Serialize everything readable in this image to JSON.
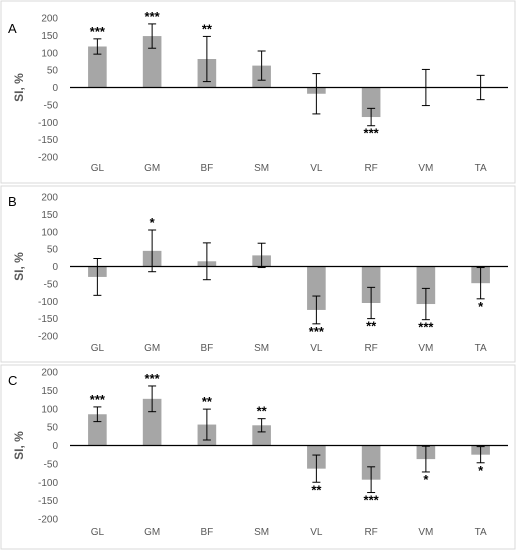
{
  "chart_data": [
    {
      "panel": "A",
      "type": "bar",
      "ylabel": "SI, %",
      "ylim": [
        -200,
        200
      ],
      "yticks": [
        200,
        150,
        100,
        50,
        0,
        -50,
        -100,
        -150,
        -200
      ],
      "categories": [
        "GL",
        "GM",
        "BF",
        "SM",
        "VL",
        "RF",
        "VM",
        "TA"
      ],
      "values": [
        118,
        148,
        82,
        63,
        -18,
        -85,
        0,
        0
      ],
      "error": [
        22,
        35,
        65,
        42,
        58,
        25,
        52,
        35
      ],
      "significance": [
        "***",
        "***",
        "**",
        "",
        "",
        "***",
        "",
        ""
      ]
    },
    {
      "panel": "B",
      "type": "bar",
      "ylabel": "SI, %",
      "ylim": [
        -200,
        200
      ],
      "yticks": [
        200,
        150,
        100,
        50,
        0,
        -50,
        -100,
        -150,
        -200
      ],
      "categories": [
        "GL",
        "GM",
        "BF",
        "SM",
        "VL",
        "RF",
        "VM",
        "TA"
      ],
      "values": [
        -30,
        45,
        15,
        32,
        -125,
        -105,
        -108,
        -48
      ],
      "error": [
        53,
        60,
        53,
        35,
        40,
        45,
        45,
        45
      ],
      "significance": [
        "",
        "*",
        "",
        "",
        "***",
        "**",
        "***",
        "*"
      ]
    },
    {
      "panel": "C",
      "type": "bar",
      "ylabel": "SI, %",
      "ylim": [
        -200,
        200
      ],
      "yticks": [
        200,
        150,
        100,
        50,
        0,
        -50,
        -100,
        -150,
        -200
      ],
      "categories": [
        "GL",
        "GM",
        "BF",
        "SM",
        "VL",
        "RF",
        "VM",
        "TA"
      ],
      "values": [
        85,
        127,
        57,
        55,
        -63,
        -93,
        -37,
        -25
      ],
      "error": [
        20,
        35,
        42,
        18,
        37,
        35,
        35,
        22
      ],
      "significance": [
        "***",
        "***",
        "**",
        "**",
        "**",
        "***",
        "*",
        "*"
      ]
    }
  ],
  "colors": {
    "bar": "#a6a6a6",
    "axis": "#000000",
    "text": "#595959",
    "frame": "#d9d9d9"
  }
}
